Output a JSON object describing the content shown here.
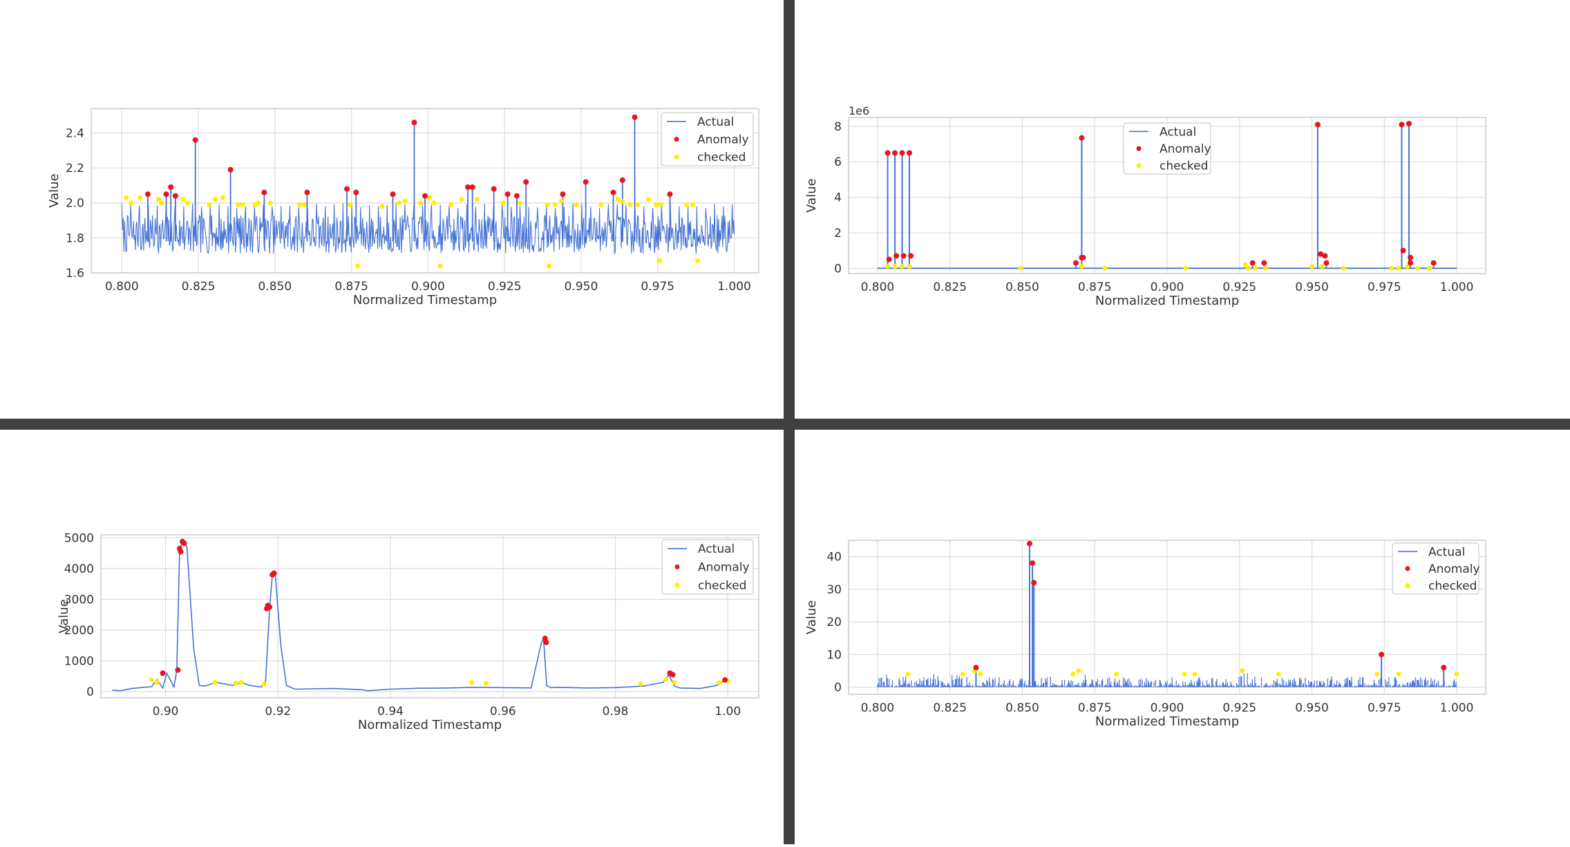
{
  "colors": {
    "divider": "#404040",
    "actual": "#4472d4",
    "anomaly": "#e8141e",
    "checked": "#ffee00",
    "grid": "#dcdcdc",
    "frame": "#cccccc",
    "text": "#333333"
  },
  "legend_labels": {
    "actual": "Actual",
    "anomaly": "Anomaly",
    "checked": "checked"
  },
  "chart_data": [
    {
      "type": "line",
      "panel": "top-left",
      "xlabel": "Normalized Timestamp",
      "ylabel": "Value",
      "xlim": [
        0.79,
        1.008
      ],
      "ylim": [
        1.6,
        2.54
      ],
      "xticks": [
        0.8,
        0.825,
        0.85,
        0.875,
        0.9,
        0.925,
        0.95,
        0.975,
        1.0
      ],
      "xtick_labels": [
        "0.800",
        "0.825",
        "0.850",
        "0.875",
        "0.900",
        "0.925",
        "0.950",
        "0.975",
        "1.000"
      ],
      "yticks": [
        1.6,
        1.8,
        2.0,
        2.2,
        2.4
      ],
      "ytick_labels": [
        "1.6",
        "1.8",
        "2.0",
        "2.2",
        "2.4"
      ],
      "legend": "top-right",
      "grid": true,
      "series": [
        {
          "name": "Actual",
          "description": "dense noisy signal around 1.8 with periodic spikes",
          "baseline": 1.82,
          "range": [
            1.66,
            2.49
          ]
        }
      ],
      "anomalies": [
        [
          0.8085,
          2.05
        ],
        [
          0.8145,
          2.05
        ],
        [
          0.816,
          2.09
        ],
        [
          0.8175,
          2.04
        ],
        [
          0.824,
          2.36
        ],
        [
          0.8355,
          2.19
        ],
        [
          0.8465,
          2.06
        ],
        [
          0.8605,
          2.06
        ],
        [
          0.8735,
          2.08
        ],
        [
          0.8765,
          2.06
        ],
        [
          0.8885,
          2.05
        ],
        [
          0.8955,
          2.46
        ],
        [
          0.899,
          2.04
        ],
        [
          0.913,
          2.09
        ],
        [
          0.9145,
          2.09
        ],
        [
          0.9215,
          2.08
        ],
        [
          0.926,
          2.05
        ],
        [
          0.929,
          2.04
        ],
        [
          0.932,
          2.12
        ],
        [
          0.944,
          2.05
        ],
        [
          0.9515,
          2.12
        ],
        [
          0.9605,
          2.06
        ],
        [
          0.9635,
          2.13
        ],
        [
          0.9675,
          2.49
        ],
        [
          0.979,
          2.05
        ]
      ],
      "checked": [
        [
          0.8015,
          2.03
        ],
        [
          0.803,
          2.0
        ],
        [
          0.806,
          2.03
        ],
        [
          0.812,
          2.02
        ],
        [
          0.813,
          2.0
        ],
        [
          0.82,
          2.02
        ],
        [
          0.8215,
          2.0
        ],
        [
          0.8285,
          1.99
        ],
        [
          0.8305,
          2.02
        ],
        [
          0.833,
          2.03
        ],
        [
          0.838,
          1.99
        ],
        [
          0.8395,
          1.99
        ],
        [
          0.8435,
          1.99
        ],
        [
          0.8445,
          2.0
        ],
        [
          0.8485,
          2.0
        ],
        [
          0.858,
          1.99
        ],
        [
          0.8595,
          1.99
        ],
        [
          0.8745,
          1.99
        ],
        [
          0.877,
          1.64
        ],
        [
          0.885,
          1.98
        ],
        [
          0.8905,
          2.0
        ],
        [
          0.8925,
          2.01
        ],
        [
          0.8975,
          2.0
        ],
        [
          0.9005,
          2.03
        ],
        [
          0.902,
          2.0
        ],
        [
          0.904,
          1.64
        ],
        [
          0.9075,
          1.99
        ],
        [
          0.911,
          2.02
        ],
        [
          0.916,
          2.02
        ],
        [
          0.9245,
          2.0
        ],
        [
          0.93,
          2.0
        ],
        [
          0.939,
          1.99
        ],
        [
          0.9395,
          1.64
        ],
        [
          0.9415,
          1.99
        ],
        [
          0.9435,
          2.01
        ],
        [
          0.9485,
          1.99
        ],
        [
          0.9565,
          1.99
        ],
        [
          0.962,
          2.02
        ],
        [
          0.9635,
          2.01
        ],
        [
          0.966,
          1.99
        ],
        [
          0.9685,
          1.99
        ],
        [
          0.972,
          2.02
        ],
        [
          0.9745,
          1.99
        ],
        [
          0.976,
          1.99
        ],
        [
          0.9755,
          1.67
        ],
        [
          0.9845,
          1.99
        ],
        [
          0.9865,
          1.99
        ],
        [
          0.988,
          1.67
        ]
      ]
    },
    {
      "type": "line",
      "panel": "top-right",
      "xlabel": "Normalized Timestamp",
      "ylabel": "Value",
      "yoffset_label": "1e6",
      "xlim": [
        0.79,
        1.01
      ],
      "ylim": [
        -0.3,
        8.5
      ],
      "xticks": [
        0.8,
        0.825,
        0.85,
        0.875,
        0.9,
        0.925,
        0.95,
        0.975,
        1.0
      ],
      "xtick_labels": [
        "0.800",
        "0.825",
        "0.850",
        "0.875",
        "0.900",
        "0.925",
        "0.950",
        "0.975",
        "1.000"
      ],
      "yticks": [
        0,
        2,
        4,
        6,
        8
      ],
      "ytick_labels": [
        "0",
        "2",
        "4",
        "6",
        "8"
      ],
      "legend": "top-center",
      "grid": true,
      "series": [
        {
          "name": "Actual",
          "description": "flat near zero with tall spike clusters",
          "baseline": 0.0
        }
      ],
      "spikes": [
        [
          0.8035,
          6.5
        ],
        [
          0.806,
          6.5
        ],
        [
          0.8085,
          6.5
        ],
        [
          0.811,
          6.5
        ],
        [
          0.8705,
          7.35
        ],
        [
          0.952,
          8.1
        ],
        [
          0.981,
          8.1
        ],
        [
          0.9835,
          8.15
        ]
      ],
      "anomalies": [
        [
          0.8035,
          6.5
        ],
        [
          0.806,
          6.5
        ],
        [
          0.8085,
          6.5
        ],
        [
          0.811,
          6.5
        ],
        [
          0.804,
          0.5
        ],
        [
          0.8065,
          0.7
        ],
        [
          0.809,
          0.7
        ],
        [
          0.8115,
          0.7
        ],
        [
          0.8705,
          7.35
        ],
        [
          0.8705,
          0.6
        ],
        [
          0.871,
          0.6
        ],
        [
          0.8685,
          0.3
        ],
        [
          0.9295,
          0.3
        ],
        [
          0.9335,
          0.3
        ],
        [
          0.952,
          8.1
        ],
        [
          0.953,
          0.8
        ],
        [
          0.9545,
          0.7
        ],
        [
          0.955,
          0.3
        ],
        [
          0.981,
          8.1
        ],
        [
          0.9835,
          8.15
        ],
        [
          0.9815,
          1.0
        ],
        [
          0.984,
          0.6
        ],
        [
          0.984,
          0.3
        ],
        [
          0.992,
          0.3
        ]
      ],
      "checked": [
        [
          0.8035,
          0.1
        ],
        [
          0.806,
          0.1
        ],
        [
          0.8085,
          0.1
        ],
        [
          0.811,
          0.1
        ],
        [
          0.8495,
          0.0
        ],
        [
          0.8705,
          0.1
        ],
        [
          0.8785,
          0.0
        ],
        [
          0.9065,
          0.0
        ],
        [
          0.927,
          0.2
        ],
        [
          0.928,
          0.0
        ],
        [
          0.9305,
          0.0
        ],
        [
          0.934,
          0.0
        ],
        [
          0.95,
          0.1
        ],
        [
          0.9535,
          0.1
        ],
        [
          0.961,
          0.0
        ],
        [
          0.9775,
          0.0
        ],
        [
          0.98,
          0.0
        ],
        [
          0.983,
          0.1
        ],
        [
          0.9865,
          0.0
        ],
        [
          0.9905,
          0.0
        ]
      ]
    },
    {
      "type": "line",
      "panel": "bottom-left",
      "xlabel": "Normalized Timestamp",
      "ylabel": "Value",
      "xlim": [
        0.8885,
        1.0055
      ],
      "ylim": [
        -200,
        5100
      ],
      "xticks": [
        0.9,
        0.92,
        0.94,
        0.96,
        0.98,
        1.0
      ],
      "xtick_labels": [
        "0.90",
        "0.92",
        "0.94",
        "0.96",
        "0.98",
        "1.00"
      ],
      "yticks": [
        0,
        1000,
        2000,
        3000,
        4000,
        5000
      ],
      "ytick_labels": [
        "0",
        "1000",
        "2000",
        "3000",
        "4000",
        "5000"
      ],
      "legend": "top-right",
      "grid": true,
      "series": [
        {
          "name": "Actual",
          "x": [
            0.8905,
            0.892,
            0.894,
            0.896,
            0.8975,
            0.8985,
            0.8995,
            0.9002,
            0.9015,
            0.902,
            0.9025,
            0.903,
            0.9038,
            0.905,
            0.906,
            0.907,
            0.909,
            0.912,
            0.9135,
            0.915,
            0.917,
            0.9178,
            0.9185,
            0.919,
            0.9195,
            0.9205,
            0.9215,
            0.923,
            0.93,
            0.935,
            0.936,
            0.94,
            0.945,
            0.95,
            0.955,
            0.96,
            0.965,
            0.9668,
            0.9672,
            0.9678,
            0.9685,
            0.97,
            0.975,
            0.98,
            0.985,
            0.9885,
            0.9895,
            0.9905,
            0.9915,
            0.995,
            0.998,
            0.9995,
            1.0
          ],
          "values": [
            50,
            30,
            100,
            140,
            160,
            390,
            120,
            600,
            150,
            700,
            4550,
            4900,
            4700,
            1400,
            200,
            180,
            300,
            200,
            300,
            200,
            150,
            350,
            2700,
            3800,
            3850,
            1500,
            200,
            80,
            100,
            60,
            30,
            80,
            110,
            120,
            140,
            130,
            120,
            1550,
            1750,
            200,
            130,
            140,
            120,
            130,
            180,
            300,
            550,
            180,
            120,
            100,
            200,
            380,
            340
          ]
        }
      ],
      "anomalies": [
        [
          0.8995,
          600
        ],
        [
          0.9022,
          700
        ],
        [
          0.9025,
          4650
        ],
        [
          0.9027,
          4550
        ],
        [
          0.903,
          4880
        ],
        [
          0.9033,
          4820
        ],
        [
          0.918,
          2700
        ],
        [
          0.9182,
          2800
        ],
        [
          0.9185,
          2750
        ],
        [
          0.919,
          3800
        ],
        [
          0.9193,
          3850
        ],
        [
          0.9675,
          1730
        ],
        [
          0.9677,
          1600
        ],
        [
          0.9897,
          600
        ],
        [
          0.9902,
          550
        ],
        [
          0.9995,
          380
        ]
      ],
      "checked": [
        [
          0.8975,
          390
        ],
        [
          0.8985,
          300
        ],
        [
          0.9088,
          300
        ],
        [
          0.9125,
          280
        ],
        [
          0.9135,
          300
        ],
        [
          0.9175,
          240
        ],
        [
          0.9545,
          300
        ],
        [
          0.957,
          270
        ],
        [
          0.9845,
          250
        ],
        [
          0.989,
          400
        ],
        [
          0.9905,
          300
        ],
        [
          0.9985,
          300
        ],
        [
          1.0,
          340
        ]
      ]
    },
    {
      "type": "line",
      "panel": "bottom-right",
      "xlabel": "Normalized Timestamp",
      "ylabel": "Value",
      "xlim": [
        0.79,
        1.01
      ],
      "ylim": [
        -2.2,
        45
      ],
      "xticks": [
        0.8,
        0.825,
        0.85,
        0.875,
        0.9,
        0.925,
        0.95,
        0.975,
        1.0
      ],
      "xtick_labels": [
        "0.800",
        "0.825",
        "0.850",
        "0.875",
        "0.900",
        "0.925",
        "0.950",
        "0.975",
        "1.000"
      ],
      "yticks": [
        0,
        10,
        20,
        30,
        40
      ],
      "ytick_labels": [
        "0",
        "10",
        "20",
        "30",
        "40"
      ],
      "legend": "top-right",
      "grid": true,
      "series": [
        {
          "name": "Actual",
          "description": "sparse low values 0 to 5 with a few tall spikes",
          "baseline": 0.0,
          "range": [
            0,
            44
          ]
        }
      ],
      "spikes": [
        [
          0.8525,
          44
        ],
        [
          0.8535,
          38
        ],
        [
          0.854,
          32
        ],
        [
          0.974,
          10
        ],
        [
          0.9955,
          6
        ],
        [
          0.834,
          6
        ]
      ],
      "anomalies": [
        [
          0.8525,
          44
        ],
        [
          0.8535,
          38
        ],
        [
          0.854,
          32
        ],
        [
          0.834,
          6
        ],
        [
          0.974,
          10
        ],
        [
          0.9955,
          6
        ]
      ],
      "checked": [
        [
          0.8105,
          4
        ],
        [
          0.8295,
          4
        ],
        [
          0.8335,
          5
        ],
        [
          0.8355,
          4
        ],
        [
          0.8675,
          4
        ],
        [
          0.8695,
          5
        ],
        [
          0.8825,
          4
        ],
        [
          0.906,
          4
        ],
        [
          0.9095,
          4
        ],
        [
          0.926,
          5
        ],
        [
          0.9385,
          4
        ],
        [
          0.9725,
          4
        ],
        [
          0.98,
          4
        ],
        [
          1.0,
          4
        ]
      ]
    }
  ]
}
